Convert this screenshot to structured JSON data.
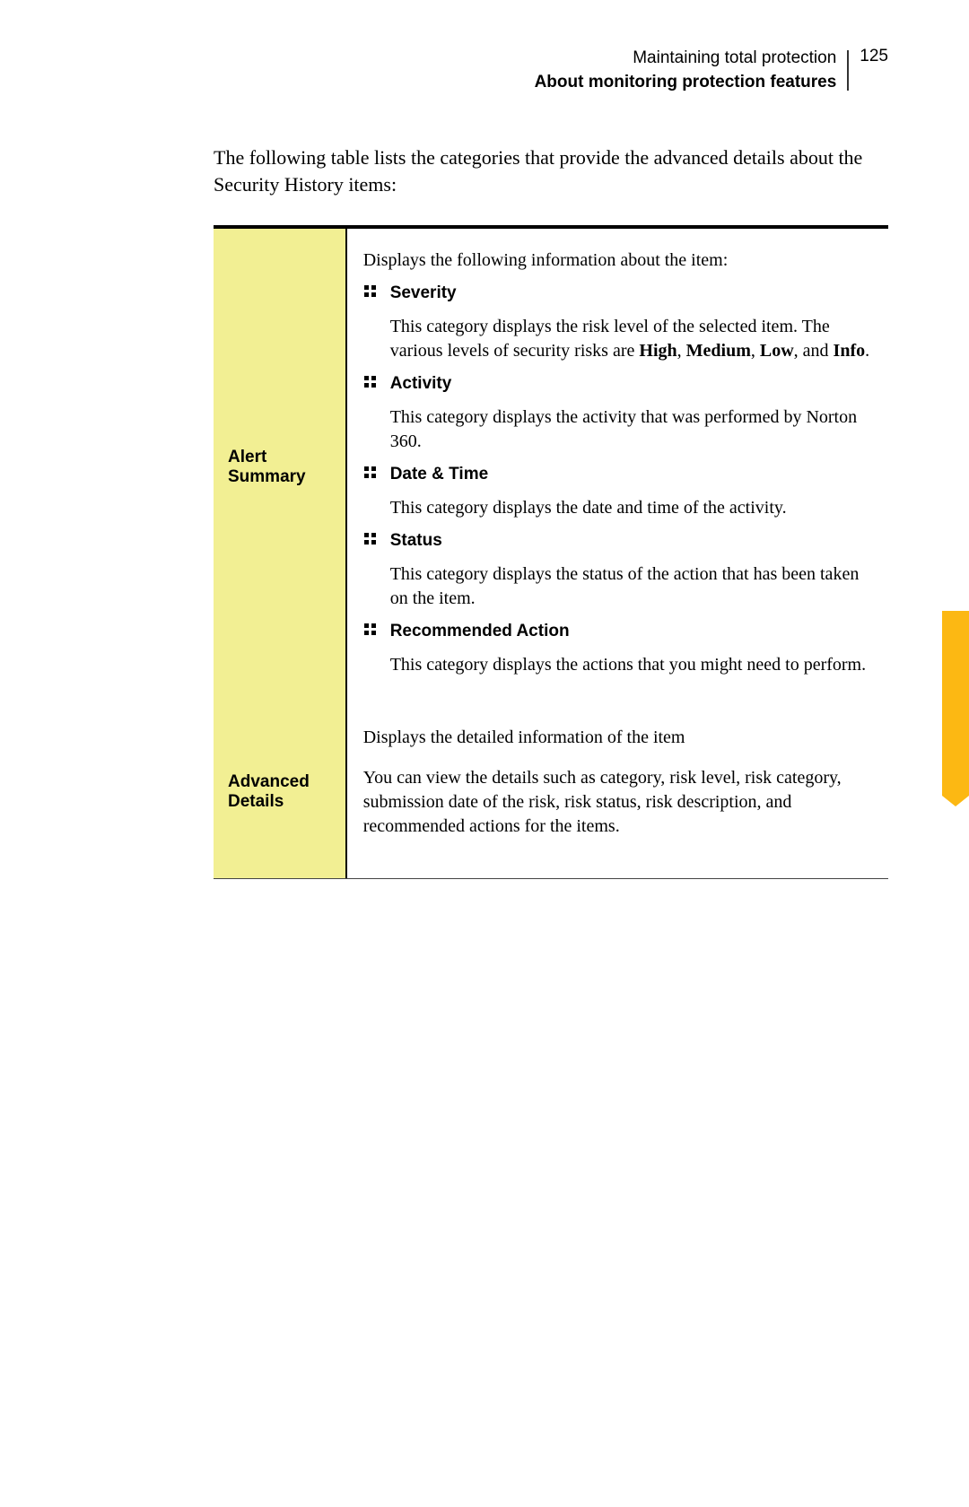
{
  "header": {
    "title": "Maintaining total protection",
    "subtitle": "About monitoring protection features",
    "page_number": "125"
  },
  "intro": "The following table lists the categories that provide the advanced details about the Security History items:",
  "rows": [
    {
      "label": "Alert Summary",
      "lead": "Displays the following information about the item:",
      "items": [
        {
          "head": "Severity",
          "desc_html": "This category displays the risk level of the selected item. The various levels of security risks are <b>High</b>, <b>Medium</b>, <b>Low</b>, and <b>Info</b>."
        },
        {
          "head": "Activity",
          "desc_html": "This category displays the activity that was performed by Norton 360."
        },
        {
          "head": "Date & Time",
          "desc_html": "This category displays the date and time of the activity."
        },
        {
          "head": "Status",
          "desc_html": "This category displays the status of the action that has been taken on the item."
        },
        {
          "head": "Recommended Action",
          "desc_html": "This category displays the actions that you might need to perform."
        }
      ]
    },
    {
      "label": "Advanced Details",
      "paras": [
        "Displays the detailed information of the item",
        "You can view the details such as category, risk level, risk category, submission date of the risk, risk status, risk description, and recommended actions for the items."
      ]
    }
  ],
  "colors": {
    "left_bg": "#f2ef93",
    "tab_bg": "#fcb813",
    "text": "#000000"
  }
}
